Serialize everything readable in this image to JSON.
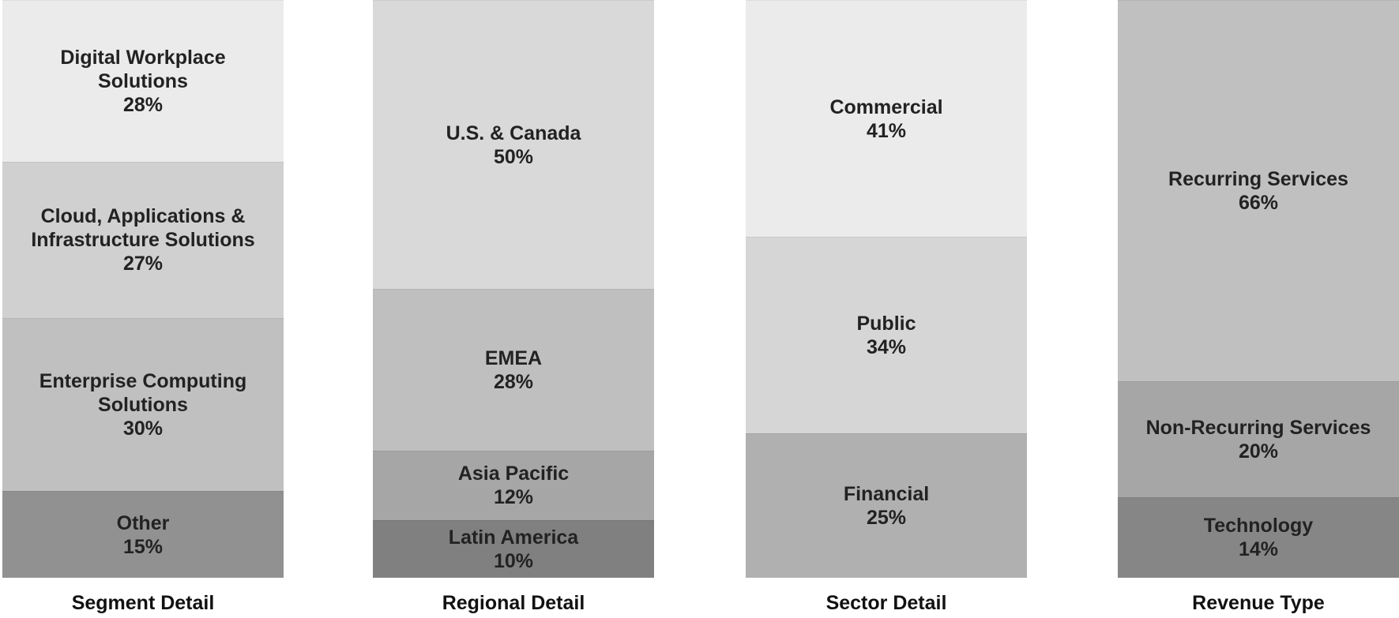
{
  "chart_data": [
    {
      "type": "stacked_column",
      "title": "Segment Detail",
      "categories": [
        "Digital Workplace Solutions",
        "Cloud, Applications & Infrastructure Solutions",
        "Enterprise Computing Solutions",
        "Other"
      ],
      "values": [
        28,
        27,
        30,
        15
      ],
      "value_labels": [
        "28%",
        "27%",
        "30%",
        "15%"
      ],
      "colors": [
        "#ebebeb",
        "#d0d0d0",
        "#c0c0c0",
        "#919191"
      ]
    },
    {
      "type": "stacked_column",
      "title": "Regional Detail",
      "categories": [
        "U.S. & Canada",
        "EMEA",
        "Asia Pacific",
        "Latin America"
      ],
      "values": [
        50,
        28,
        12,
        10
      ],
      "value_labels": [
        "50%",
        "28%",
        "12%",
        "10%"
      ],
      "colors": [
        "#d9d9d9",
        "#bfbfbf",
        "#a6a6a6",
        "#808080"
      ]
    },
    {
      "type": "stacked_column",
      "title": "Sector Detail",
      "categories": [
        "Commercial",
        "Public",
        "Financial"
      ],
      "values": [
        41,
        34,
        25
      ],
      "value_labels": [
        "41%",
        "34%",
        "25%"
      ],
      "colors": [
        "#ebebeb",
        "#d6d6d6",
        "#b0b0b0"
      ]
    },
    {
      "type": "stacked_column",
      "title": "Revenue Type",
      "categories": [
        "Recurring Services",
        "Non-Recurring Services",
        "Technology"
      ],
      "values": [
        66,
        20,
        14
      ],
      "value_labels": [
        "66%",
        "20%",
        "14%"
      ],
      "colors": [
        "#c0c0c0",
        "#a6a6a6",
        "#868686"
      ]
    }
  ]
}
